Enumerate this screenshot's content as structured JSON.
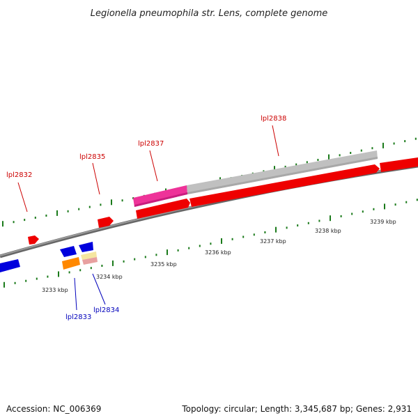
{
  "title": "Legionella pneumophila str. Lens, complete genome",
  "scale_labels": [
    {
      "id": "3233",
      "text": "3233 kbp"
    },
    {
      "id": "3234",
      "text": "3234 kbp"
    },
    {
      "id": "3235",
      "text": "3235 kbp"
    },
    {
      "id": "3236",
      "text": "3236 kbp"
    },
    {
      "id": "3237",
      "text": "3237 kbp"
    },
    {
      "id": "3238",
      "text": "3238 kbp"
    },
    {
      "id": "3239",
      "text": "3239 kbp"
    }
  ],
  "genes": [
    {
      "id": "lpl2832",
      "label": "lpl2832",
      "strand": "forward",
      "color": "#ee0000"
    },
    {
      "id": "lpl2835",
      "label": "lpl2835",
      "strand": "forward",
      "color": "#ee0000"
    },
    {
      "id": "lpl2837",
      "label": "lpl2837",
      "strand": "forward",
      "color": "#ee0000"
    },
    {
      "id": "lpl2838",
      "label": "lpl2838",
      "strand": "forward",
      "color": "#ee0000"
    },
    {
      "id": "lpl2833",
      "label": "lpl2833",
      "strand": "reverse",
      "color": "#0000dd"
    },
    {
      "id": "lpl2834",
      "label": "lpl2834",
      "strand": "reverse",
      "color": "#0000dd"
    }
  ],
  "colors": {
    "forward_label": "#cc0000",
    "reverse_label": "#0000bb",
    "forward_cds": "#ee0000",
    "reverse_cds": "#0000dd",
    "backbone": "#808080",
    "ticks": "#1a7a1a",
    "magenta_feature": "#ee3399",
    "grey_feature": "#c0c0c0",
    "orange_feature": "#ff8800",
    "pale_feature": "#f5e6a0",
    "pink_feature": "#e8a0a0"
  },
  "footer": {
    "accession": "Accession: NC_006369",
    "summary": "Topology: circular; Length: 3,345,687 bp; Genes: 2,931"
  }
}
